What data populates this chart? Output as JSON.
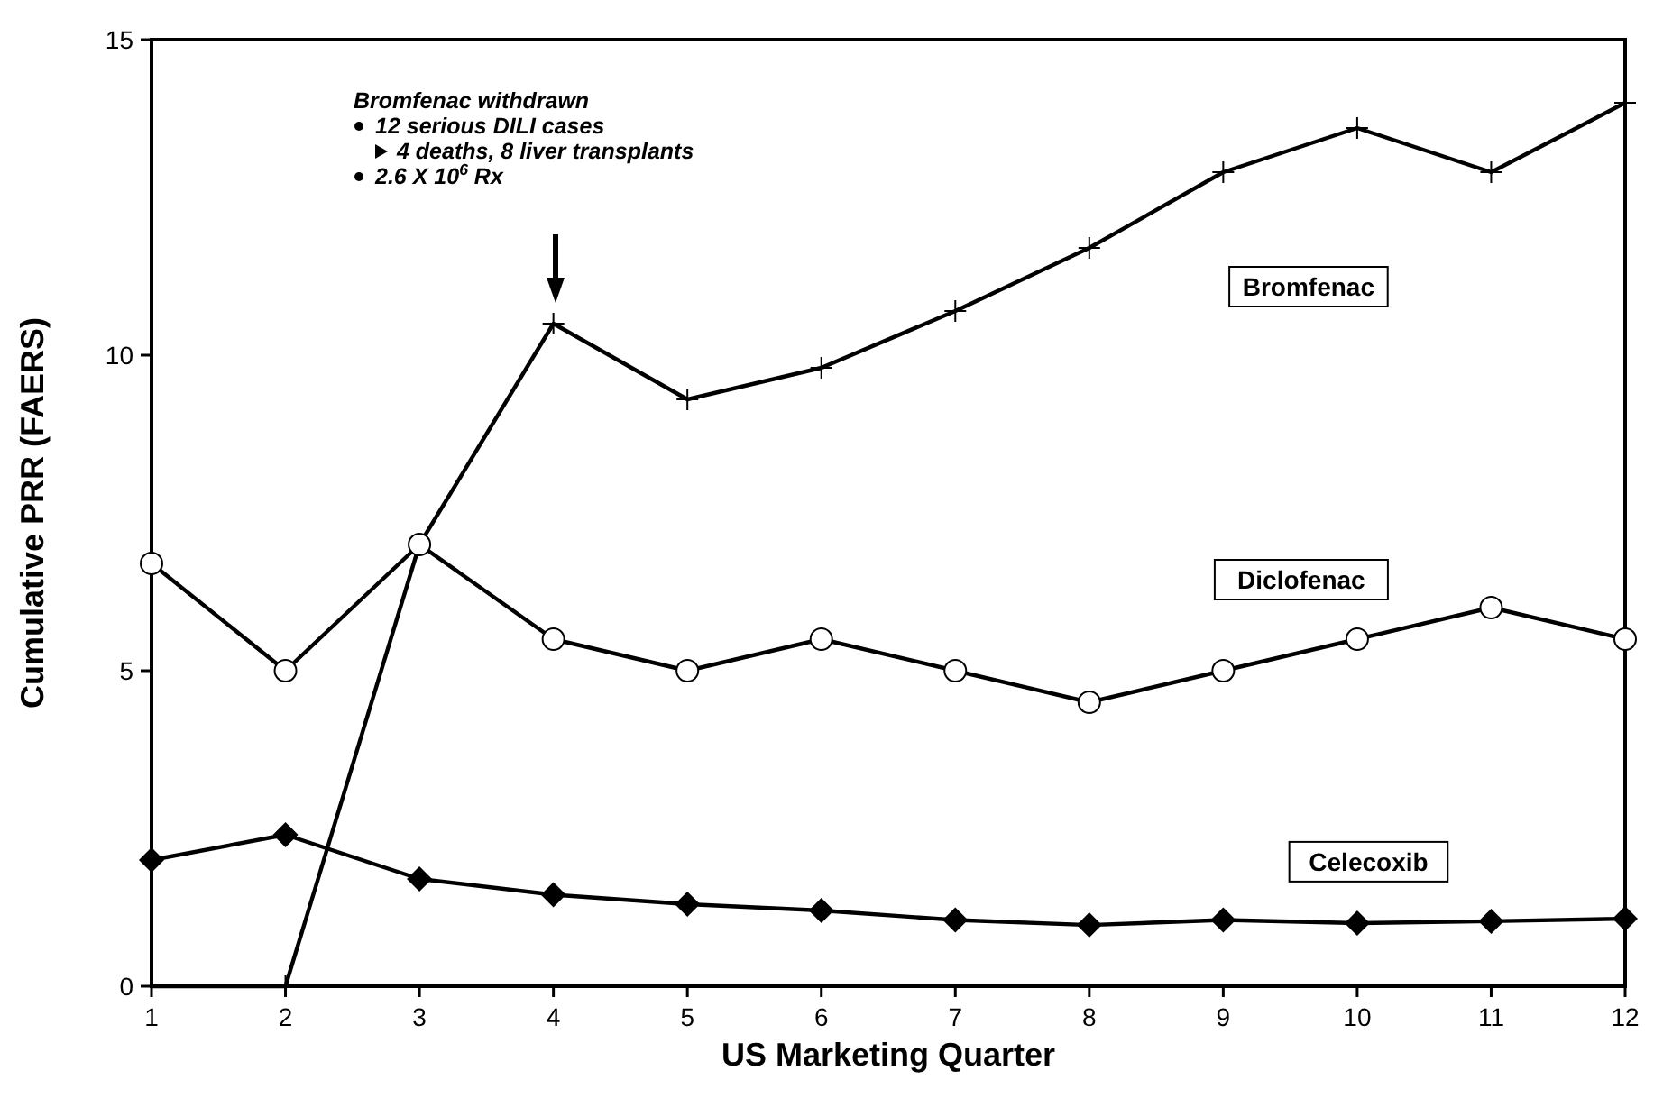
{
  "chart_data": {
    "type": "line",
    "xlabel": "US Marketing Quarter",
    "ylabel": "Cumulative PRR (FAERS)",
    "x": [
      1,
      2,
      3,
      4,
      5,
      6,
      7,
      8,
      9,
      10,
      11,
      12
    ],
    "xlim": [
      1,
      12
    ],
    "xticks": [
      1,
      2,
      3,
      4,
      5,
      6,
      7,
      8,
      9,
      10,
      11,
      12
    ],
    "ylim": [
      0,
      15
    ],
    "yticks": [
      0,
      5,
      10,
      15
    ],
    "grid": false,
    "legend": false,
    "line_style": "solid",
    "series": [
      {
        "name": "Bromfenac",
        "color": "#000000",
        "marker": "cross",
        "values": [
          0,
          0,
          7.0,
          10.5,
          9.3,
          9.8,
          10.7,
          11.7,
          12.9,
          13.6,
          12.9,
          14.0
        ]
      },
      {
        "name": "Diclofenac",
        "color": "#000000",
        "marker": "circle",
        "values": [
          6.7,
          5.0,
          7.0,
          5.5,
          5.0,
          5.5,
          5.0,
          4.5,
          5.0,
          5.5,
          6.0,
          5.5
        ]
      },
      {
        "name": "Celecoxib",
        "color": "#000000",
        "marker": "diamond",
        "values": [
          2.0,
          2.4,
          1.7,
          1.45,
          1.3,
          1.2,
          1.05,
          0.97,
          1.05,
          1.0,
          1.03,
          1.07
        ]
      }
    ],
    "annotations": [
      "Bromfenac withdrawn",
      "12 serious DILI cases",
      "4 deaths, 8 liver transplants",
      "2.6 X 10$^{6}$ Rx"
    ]
  }
}
